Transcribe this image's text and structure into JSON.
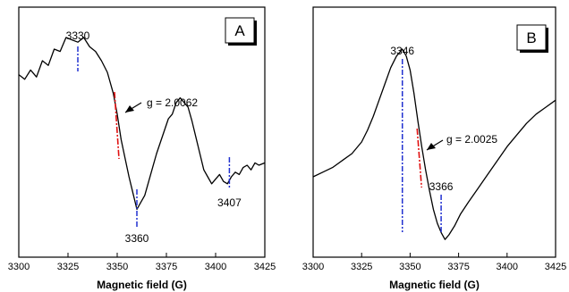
{
  "chart_data": [
    {
      "type": "line",
      "panel_label": "A",
      "xlabel": "Magnetic field (G)",
      "xlim": [
        3300,
        3425
      ],
      "ylim": [
        0,
        1
      ],
      "xticks": [
        3300,
        3325,
        3350,
        3375,
        3400,
        3425
      ],
      "series": [
        {
          "x": [
            3300,
            3303,
            3306,
            3309,
            3312,
            3315,
            3318,
            3321,
            3324,
            3327,
            3330,
            3333,
            3336,
            3339,
            3342,
            3345,
            3348,
            3350,
            3352,
            3354,
            3356,
            3358,
            3360,
            3362,
            3364,
            3366,
            3368,
            3370,
            3372,
            3374,
            3376,
            3378,
            3380,
            3382,
            3384,
            3386,
            3388,
            3390,
            3392,
            3394,
            3396,
            3398,
            3400,
            3402,
            3404,
            3406,
            3408,
            3410,
            3412,
            3414,
            3416,
            3418,
            3420,
            3422,
            3425
          ],
          "y": [
            0.74,
            0.72,
            0.76,
            0.73,
            0.8,
            0.78,
            0.85,
            0.84,
            0.9,
            0.89,
            0.88,
            0.9,
            0.86,
            0.84,
            0.8,
            0.75,
            0.66,
            0.57,
            0.46,
            0.38,
            0.3,
            0.23,
            0.16,
            0.19,
            0.22,
            0.28,
            0.34,
            0.4,
            0.45,
            0.5,
            0.55,
            0.57,
            0.62,
            0.64,
            0.62,
            0.6,
            0.54,
            0.47,
            0.4,
            0.33,
            0.3,
            0.27,
            0.29,
            0.31,
            0.28,
            0.27,
            0.3,
            0.32,
            0.31,
            0.34,
            0.35,
            0.33,
            0.36,
            0.35,
            0.36
          ]
        }
      ],
      "peak_labels": [
        {
          "x": 3330,
          "text": "3330"
        },
        {
          "x": 3360,
          "text": "3360"
        },
        {
          "x": 3407,
          "text": "3407"
        }
      ],
      "g_annotation": {
        "x": 3350,
        "text": "g = 2.0062"
      }
    },
    {
      "type": "line",
      "panel_label": "B",
      "xlabel": "Magnetic field (G)",
      "xlim": [
        3300,
        3425
      ],
      "ylim": [
        0,
        1
      ],
      "xticks": [
        3300,
        3325,
        3350,
        3375,
        3400,
        3425
      ],
      "series": [
        {
          "x": [
            3300,
            3305,
            3310,
            3315,
            3320,
            3325,
            3328,
            3331,
            3334,
            3337,
            3340,
            3343,
            3346,
            3348,
            3350,
            3352,
            3354,
            3356,
            3358,
            3360,
            3362,
            3364,
            3366,
            3368,
            3370,
            3373,
            3376,
            3380,
            3385,
            3390,
            3395,
            3400,
            3405,
            3410,
            3415,
            3420,
            3425
          ],
          "y": [
            0.3,
            0.32,
            0.34,
            0.37,
            0.4,
            0.45,
            0.5,
            0.56,
            0.63,
            0.7,
            0.77,
            0.82,
            0.85,
            0.82,
            0.76,
            0.66,
            0.54,
            0.43,
            0.33,
            0.24,
            0.16,
            0.1,
            0.06,
            0.03,
            0.05,
            0.09,
            0.14,
            0.19,
            0.25,
            0.31,
            0.37,
            0.43,
            0.48,
            0.53,
            0.57,
            0.6,
            0.63
          ]
        }
      ],
      "peak_labels": [
        {
          "x": 3346,
          "text": "3346"
        },
        {
          "x": 3366,
          "text": "3366"
        }
      ],
      "g_annotation": {
        "x": 3355,
        "text": "g = 2.0025"
      }
    }
  ]
}
